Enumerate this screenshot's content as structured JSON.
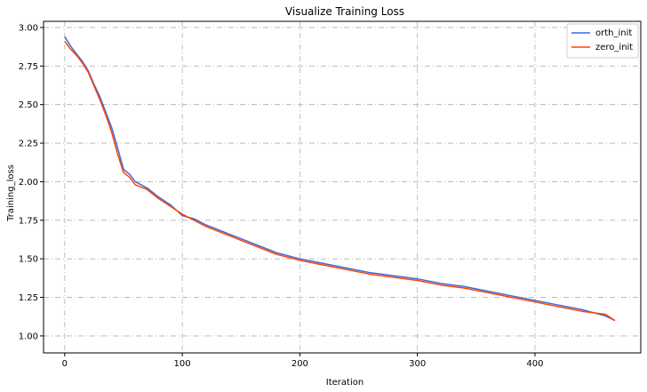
{
  "chart_data": {
    "type": "line",
    "title": "Visualize Training Loss",
    "xlabel": "Iteration",
    "ylabel": "Training_loss",
    "xlim": [
      -18,
      490
    ],
    "ylim": [
      0.89,
      3.04
    ],
    "xticks": [
      0,
      100,
      200,
      300,
      400
    ],
    "yticks": [
      1.0,
      1.25,
      1.5,
      1.75,
      2.0,
      2.25,
      2.5,
      2.75,
      3.0
    ],
    "grid": true,
    "legend_position": "top-right",
    "series": [
      {
        "name": "orth_init",
        "color": "#4169e1",
        "points": [
          [
            0,
            2.94
          ],
          [
            5,
            2.88
          ],
          [
            10,
            2.83
          ],
          [
            15,
            2.78
          ],
          [
            20,
            2.72
          ],
          [
            25,
            2.63
          ],
          [
            30,
            2.55
          ],
          [
            35,
            2.45
          ],
          [
            40,
            2.35
          ],
          [
            45,
            2.22
          ],
          [
            50,
            2.08
          ],
          [
            55,
            2.05
          ],
          [
            60,
            2.0
          ],
          [
            70,
            1.96
          ],
          [
            80,
            1.9
          ],
          [
            90,
            1.85
          ],
          [
            100,
            1.78
          ],
          [
            110,
            1.76
          ],
          [
            120,
            1.72
          ],
          [
            130,
            1.69
          ],
          [
            140,
            1.66
          ],
          [
            150,
            1.63
          ],
          [
            160,
            1.6
          ],
          [
            170,
            1.57
          ],
          [
            180,
            1.54
          ],
          [
            190,
            1.52
          ],
          [
            200,
            1.5
          ],
          [
            220,
            1.47
          ],
          [
            240,
            1.44
          ],
          [
            260,
            1.41
          ],
          [
            280,
            1.39
          ],
          [
            300,
            1.37
          ],
          [
            320,
            1.34
          ],
          [
            340,
            1.32
          ],
          [
            360,
            1.29
          ],
          [
            380,
            1.26
          ],
          [
            400,
            1.23
          ],
          [
            420,
            1.2
          ],
          [
            440,
            1.17
          ],
          [
            460,
            1.13
          ],
          [
            468,
            1.1
          ]
        ]
      },
      {
        "name": "zero_init",
        "color": "#ff4500",
        "points": [
          [
            0,
            2.91
          ],
          [
            5,
            2.86
          ],
          [
            10,
            2.82
          ],
          [
            15,
            2.77
          ],
          [
            20,
            2.71
          ],
          [
            25,
            2.62
          ],
          [
            30,
            2.53
          ],
          [
            35,
            2.43
          ],
          [
            40,
            2.32
          ],
          [
            45,
            2.18
          ],
          [
            50,
            2.06
          ],
          [
            55,
            2.03
          ],
          [
            60,
            1.98
          ],
          [
            70,
            1.95
          ],
          [
            80,
            1.89
          ],
          [
            90,
            1.84
          ],
          [
            100,
            1.79
          ],
          [
            110,
            1.75
          ],
          [
            120,
            1.71
          ],
          [
            130,
            1.68
          ],
          [
            140,
            1.65
          ],
          [
            150,
            1.62
          ],
          [
            160,
            1.59
          ],
          [
            170,
            1.56
          ],
          [
            180,
            1.53
          ],
          [
            190,
            1.51
          ],
          [
            200,
            1.49
          ],
          [
            220,
            1.46
          ],
          [
            240,
            1.43
          ],
          [
            260,
            1.4
          ],
          [
            280,
            1.38
          ],
          [
            300,
            1.36
          ],
          [
            320,
            1.33
          ],
          [
            340,
            1.31
          ],
          [
            360,
            1.28
          ],
          [
            380,
            1.25
          ],
          [
            400,
            1.22
          ],
          [
            420,
            1.19
          ],
          [
            440,
            1.16
          ],
          [
            460,
            1.14
          ],
          [
            468,
            1.1
          ]
        ]
      }
    ]
  }
}
